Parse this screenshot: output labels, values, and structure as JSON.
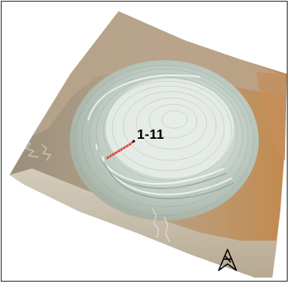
{
  "map": {
    "profile_label": "1-11",
    "colors": {
      "terrain_light": "#dfe7e1",
      "terrain_mid": "#b9c7bf",
      "terrain_warm": "#c9a57d",
      "terrain_dark": "#8d8e7c",
      "profile_line": "#d8321f",
      "contour": "#a08e7a",
      "frame": "#2a2a2a"
    },
    "icons": {
      "north_arrow": "north-arrow-icon"
    }
  }
}
